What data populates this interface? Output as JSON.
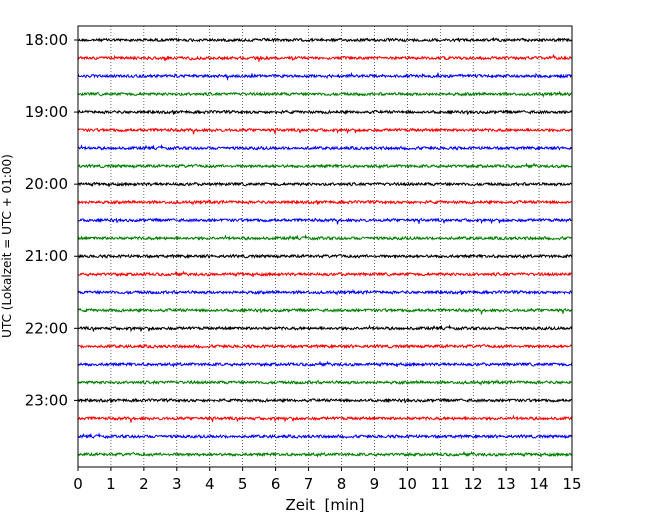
{
  "chart_data": {
    "type": "line",
    "title": "",
    "xlabel": "Zeit  [min]",
    "ylabel": "UTC (Lokalzeit = UTC + 01:00)",
    "xlim": [
      0,
      15
    ],
    "x_ticks": [
      "0",
      "1",
      "2",
      "3",
      "4",
      "5",
      "6",
      "7",
      "8",
      "9",
      "10",
      "11",
      "12",
      "13",
      "14",
      "15"
    ],
    "y_ticks": [
      "18:00",
      "19:00",
      "20:00",
      "21:00",
      "22:00",
      "23:00"
    ],
    "x_grid": true,
    "trace_interval_minutes": 15,
    "traces_start": "18:00",
    "trace_colors": [
      "#000000",
      "#ff0000",
      "#0000ff",
      "#008000"
    ],
    "traces": [
      {
        "start": "18:00"
      },
      {
        "start": "18:15"
      },
      {
        "start": "18:30"
      },
      {
        "start": "18:45"
      },
      {
        "start": "19:00"
      },
      {
        "start": "19:15"
      },
      {
        "start": "19:30"
      },
      {
        "start": "19:45"
      },
      {
        "start": "20:00"
      },
      {
        "start": "20:15"
      },
      {
        "start": "20:30"
      },
      {
        "start": "20:45"
      },
      {
        "start": "21:00"
      },
      {
        "start": "21:15"
      },
      {
        "start": "21:30"
      },
      {
        "start": "21:45"
      },
      {
        "start": "22:00"
      },
      {
        "start": "22:15"
      },
      {
        "start": "22:30"
      },
      {
        "start": "22:45"
      },
      {
        "start": "23:00"
      },
      {
        "start": "23:15"
      },
      {
        "start": "23:30"
      },
      {
        "start": "23:45"
      }
    ]
  }
}
